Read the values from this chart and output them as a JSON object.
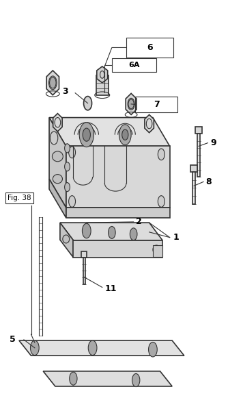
{
  "bg_color": "#ffffff",
  "line_color": "#333333",
  "label_color": "#000000",
  "fig_width": 3.56,
  "fig_height": 6.0,
  "dpi": 100
}
